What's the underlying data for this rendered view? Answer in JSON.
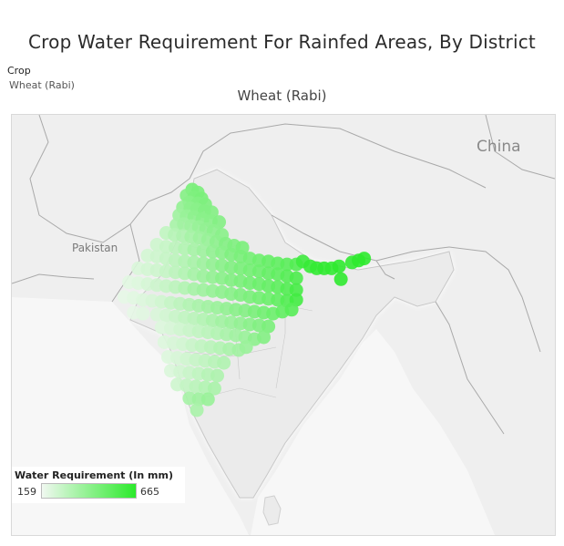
{
  "title": "Crop Water Requirement For Rainfed Areas, By District",
  "filter": {
    "label": "Crop",
    "value": "Wheat (Rabi)"
  },
  "subtitle": "Wheat (Rabi)",
  "map": {
    "country_labels": {
      "china": "China",
      "pakistan": "Pakistan"
    },
    "colors": {
      "low": "#f1f8f1",
      "high": "#2bea2b",
      "land": "#ececec",
      "border": "#a9a9a9"
    }
  },
  "legend": {
    "title": "Water Requirement (In mm)",
    "min": "159",
    "max": "665"
  },
  "districts": [
    {
      "lon": 76.8,
      "lat": 34.2,
      "v": 0.62
    },
    {
      "lon": 77.4,
      "lat": 33.9,
      "v": 0.6
    },
    {
      "lon": 76.2,
      "lat": 33.6,
      "v": 0.55
    },
    {
      "lon": 77.0,
      "lat": 33.4,
      "v": 0.58
    },
    {
      "lon": 77.8,
      "lat": 33.3,
      "v": 0.6
    },
    {
      "lon": 76.5,
      "lat": 32.9,
      "v": 0.52
    },
    {
      "lon": 77.4,
      "lat": 32.8,
      "v": 0.55
    },
    {
      "lon": 78.2,
      "lat": 32.7,
      "v": 0.58
    },
    {
      "lon": 75.8,
      "lat": 32.4,
      "v": 0.48
    },
    {
      "lon": 76.6,
      "lat": 32.3,
      "v": 0.5
    },
    {
      "lon": 77.3,
      "lat": 32.2,
      "v": 0.52
    },
    {
      "lon": 78.1,
      "lat": 32.0,
      "v": 0.55
    },
    {
      "lon": 78.9,
      "lat": 31.9,
      "v": 0.55
    },
    {
      "lon": 75.4,
      "lat": 31.6,
      "v": 0.42
    },
    {
      "lon": 76.2,
      "lat": 31.5,
      "v": 0.45
    },
    {
      "lon": 77.0,
      "lat": 31.4,
      "v": 0.5
    },
    {
      "lon": 77.9,
      "lat": 31.2,
      "v": 0.52
    },
    {
      "lon": 78.8,
      "lat": 31.0,
      "v": 0.52
    },
    {
      "lon": 79.7,
      "lat": 30.9,
      "v": 0.55
    },
    {
      "lon": 75.1,
      "lat": 30.6,
      "v": 0.38
    },
    {
      "lon": 75.9,
      "lat": 30.7,
      "v": 0.4
    },
    {
      "lon": 76.7,
      "lat": 30.5,
      "v": 0.42
    },
    {
      "lon": 77.5,
      "lat": 30.4,
      "v": 0.45
    },
    {
      "lon": 78.3,
      "lat": 30.2,
      "v": 0.48
    },
    {
      "lon": 79.1,
      "lat": 30.0,
      "v": 0.5
    },
    {
      "lon": 80.0,
      "lat": 29.6,
      "v": 0.52
    },
    {
      "lon": 74.0,
      "lat": 29.8,
      "v": 0.25
    },
    {
      "lon": 74.9,
      "lat": 29.6,
      "v": 0.3
    },
    {
      "lon": 75.8,
      "lat": 29.5,
      "v": 0.33
    },
    {
      "lon": 76.7,
      "lat": 29.4,
      "v": 0.38
    },
    {
      "lon": 77.6,
      "lat": 29.3,
      "v": 0.42
    },
    {
      "lon": 78.5,
      "lat": 29.1,
      "v": 0.45
    },
    {
      "lon": 79.4,
      "lat": 28.9,
      "v": 0.5
    },
    {
      "lon": 80.4,
      "lat": 28.7,
      "v": 0.55
    },
    {
      "lon": 81.3,
      "lat": 28.5,
      "v": 0.57
    },
    {
      "lon": 82.2,
      "lat": 28.3,
      "v": 0.6
    },
    {
      "lon": 73.0,
      "lat": 28.6,
      "v": 0.18
    },
    {
      "lon": 74.0,
      "lat": 28.4,
      "v": 0.22
    },
    {
      "lon": 75.0,
      "lat": 28.3,
      "v": 0.27
    },
    {
      "lon": 76.0,
      "lat": 28.2,
      "v": 0.32
    },
    {
      "lon": 77.0,
      "lat": 28.1,
      "v": 0.38
    },
    {
      "lon": 78.0,
      "lat": 28.0,
      "v": 0.42
    },
    {
      "lon": 79.0,
      "lat": 27.9,
      "v": 0.48
    },
    {
      "lon": 80.0,
      "lat": 27.8,
      "v": 0.52
    },
    {
      "lon": 81.0,
      "lat": 27.6,
      "v": 0.57
    },
    {
      "lon": 82.0,
      "lat": 27.4,
      "v": 0.6
    },
    {
      "lon": 83.0,
      "lat": 27.2,
      "v": 0.63
    },
    {
      "lon": 84.0,
      "lat": 27.0,
      "v": 0.66
    },
    {
      "lon": 85.0,
      "lat": 26.9,
      "v": 0.7
    },
    {
      "lon": 86.0,
      "lat": 26.7,
      "v": 0.73
    },
    {
      "lon": 87.0,
      "lat": 26.6,
      "v": 0.76
    },
    {
      "lon": 88.0,
      "lat": 26.6,
      "v": 0.8
    },
    {
      "lon": 88.7,
      "lat": 26.9,
      "v": 0.9
    },
    {
      "lon": 89.5,
      "lat": 26.4,
      "v": 0.95
    },
    {
      "lon": 90.2,
      "lat": 26.2,
      "v": 0.96
    },
    {
      "lon": 91.0,
      "lat": 26.2,
      "v": 0.97
    },
    {
      "lon": 91.8,
      "lat": 26.2,
      "v": 0.96
    },
    {
      "lon": 92.6,
      "lat": 26.4,
      "v": 0.98
    },
    {
      "lon": 94.0,
      "lat": 26.8,
      "v": 0.97
    },
    {
      "lon": 94.7,
      "lat": 27.0,
      "v": 0.98
    },
    {
      "lon": 95.3,
      "lat": 27.2,
      "v": 0.99
    },
    {
      "lon": 92.8,
      "lat": 25.1,
      "v": 0.98
    },
    {
      "lon": 72.0,
      "lat": 27.5,
      "v": 0.15
    },
    {
      "lon": 73.0,
      "lat": 27.4,
      "v": 0.18
    },
    {
      "lon": 74.0,
      "lat": 27.2,
      "v": 0.22
    },
    {
      "lon": 75.0,
      "lat": 27.0,
      "v": 0.27
    },
    {
      "lon": 76.0,
      "lat": 26.9,
      "v": 0.32
    },
    {
      "lon": 77.0,
      "lat": 26.8,
      "v": 0.37
    },
    {
      "lon": 78.0,
      "lat": 26.7,
      "v": 0.42
    },
    {
      "lon": 79.0,
      "lat": 26.6,
      "v": 0.47
    },
    {
      "lon": 80.0,
      "lat": 26.5,
      "v": 0.52
    },
    {
      "lon": 81.0,
      "lat": 26.3,
      "v": 0.56
    },
    {
      "lon": 82.0,
      "lat": 26.2,
      "v": 0.6
    },
    {
      "lon": 83.0,
      "lat": 26.0,
      "v": 0.63
    },
    {
      "lon": 84.0,
      "lat": 25.9,
      "v": 0.66
    },
    {
      "lon": 85.0,
      "lat": 25.7,
      "v": 0.7
    },
    {
      "lon": 86.0,
      "lat": 25.6,
      "v": 0.73
    },
    {
      "lon": 87.0,
      "lat": 25.4,
      "v": 0.78
    },
    {
      "lon": 88.0,
      "lat": 25.2,
      "v": 0.83
    },
    {
      "lon": 71.0,
      "lat": 26.2,
      "v": 0.12
    },
    {
      "lon": 72.0,
      "lat": 26.1,
      "v": 0.15
    },
    {
      "lon": 73.0,
      "lat": 26.0,
      "v": 0.18
    },
    {
      "lon": 74.0,
      "lat": 25.9,
      "v": 0.22
    },
    {
      "lon": 75.0,
      "lat": 25.8,
      "v": 0.27
    },
    {
      "lon": 76.0,
      "lat": 25.7,
      "v": 0.32
    },
    {
      "lon": 77.0,
      "lat": 25.6,
      "v": 0.38
    },
    {
      "lon": 78.0,
      "lat": 25.4,
      "v": 0.43
    },
    {
      "lon": 79.0,
      "lat": 25.3,
      "v": 0.47
    },
    {
      "lon": 80.0,
      "lat": 25.2,
      "v": 0.52
    },
    {
      "lon": 81.0,
      "lat": 25.0,
      "v": 0.56
    },
    {
      "lon": 82.0,
      "lat": 24.9,
      "v": 0.6
    },
    {
      "lon": 83.0,
      "lat": 24.7,
      "v": 0.64
    },
    {
      "lon": 84.0,
      "lat": 24.6,
      "v": 0.67
    },
    {
      "lon": 85.0,
      "lat": 24.4,
      "v": 0.7
    },
    {
      "lon": 86.0,
      "lat": 24.3,
      "v": 0.74
    },
    {
      "lon": 87.0,
      "lat": 24.1,
      "v": 0.8
    },
    {
      "lon": 88.0,
      "lat": 24.0,
      "v": 0.86
    },
    {
      "lon": 70.0,
      "lat": 24.8,
      "v": 0.08
    },
    {
      "lon": 71.0,
      "lat": 24.7,
      "v": 0.1
    },
    {
      "lon": 72.0,
      "lat": 24.6,
      "v": 0.14
    },
    {
      "lon": 73.0,
      "lat": 24.5,
      "v": 0.18
    },
    {
      "lon": 74.0,
      "lat": 24.4,
      "v": 0.22
    },
    {
      "lon": 75.0,
      "lat": 24.3,
      "v": 0.27
    },
    {
      "lon": 76.0,
      "lat": 24.2,
      "v": 0.32
    },
    {
      "lon": 77.0,
      "lat": 24.1,
      "v": 0.38
    },
    {
      "lon": 78.0,
      "lat": 24.0,
      "v": 0.42
    },
    {
      "lon": 79.0,
      "lat": 23.9,
      "v": 0.46
    },
    {
      "lon": 80.0,
      "lat": 23.8,
      "v": 0.5
    },
    {
      "lon": 81.0,
      "lat": 23.6,
      "v": 0.53
    },
    {
      "lon": 82.0,
      "lat": 23.5,
      "v": 0.57
    },
    {
      "lon": 83.0,
      "lat": 23.3,
      "v": 0.6
    },
    {
      "lon": 84.0,
      "lat": 23.2,
      "v": 0.64
    },
    {
      "lon": 85.0,
      "lat": 23.1,
      "v": 0.67
    },
    {
      "lon": 86.0,
      "lat": 23.0,
      "v": 0.72
    },
    {
      "lon": 87.0,
      "lat": 22.9,
      "v": 0.8
    },
    {
      "lon": 88.0,
      "lat": 23.0,
      "v": 0.88
    },
    {
      "lon": 69.5,
      "lat": 23.3,
      "v": 0.06
    },
    {
      "lon": 70.5,
      "lat": 23.2,
      "v": 0.08
    },
    {
      "lon": 71.5,
      "lat": 23.0,
      "v": 0.1
    },
    {
      "lon": 72.5,
      "lat": 22.9,
      "v": 0.13
    },
    {
      "lon": 73.5,
      "lat": 22.8,
      "v": 0.17
    },
    {
      "lon": 74.5,
      "lat": 22.7,
      "v": 0.22
    },
    {
      "lon": 75.5,
      "lat": 22.6,
      "v": 0.27
    },
    {
      "lon": 76.5,
      "lat": 22.5,
      "v": 0.32
    },
    {
      "lon": 77.5,
      "lat": 22.4,
      "v": 0.36
    },
    {
      "lon": 78.5,
      "lat": 22.3,
      "v": 0.4
    },
    {
      "lon": 79.5,
      "lat": 22.2,
      "v": 0.44
    },
    {
      "lon": 80.5,
      "lat": 22.1,
      "v": 0.48
    },
    {
      "lon": 81.5,
      "lat": 22.0,
      "v": 0.52
    },
    {
      "lon": 82.5,
      "lat": 21.9,
      "v": 0.55
    },
    {
      "lon": 83.5,
      "lat": 21.8,
      "v": 0.6
    },
    {
      "lon": 84.5,
      "lat": 21.7,
      "v": 0.64
    },
    {
      "lon": 85.5,
      "lat": 21.6,
      "v": 0.67
    },
    {
      "lon": 86.5,
      "lat": 21.8,
      "v": 0.72
    },
    {
      "lon": 87.5,
      "lat": 22.0,
      "v": 0.78
    },
    {
      "lon": 70.5,
      "lat": 21.7,
      "v": 0.06
    },
    {
      "lon": 71.5,
      "lat": 21.6,
      "v": 0.08
    },
    {
      "lon": 73.0,
      "lat": 21.5,
      "v": 0.12
    },
    {
      "lon": 74.0,
      "lat": 21.4,
      "v": 0.16
    },
    {
      "lon": 75.0,
      "lat": 21.3,
      "v": 0.2
    },
    {
      "lon": 76.0,
      "lat": 21.2,
      "v": 0.24
    },
    {
      "lon": 77.0,
      "lat": 21.1,
      "v": 0.28
    },
    {
      "lon": 78.0,
      "lat": 21.0,
      "v": 0.32
    },
    {
      "lon": 79.0,
      "lat": 20.9,
      "v": 0.36
    },
    {
      "lon": 80.0,
      "lat": 20.8,
      "v": 0.4
    },
    {
      "lon": 81.0,
      "lat": 20.7,
      "v": 0.44
    },
    {
      "lon": 82.0,
      "lat": 20.6,
      "v": 0.48
    },
    {
      "lon": 83.0,
      "lat": 20.5,
      "v": 0.52
    },
    {
      "lon": 84.0,
      "lat": 20.4,
      "v": 0.56
    },
    {
      "lon": 85.0,
      "lat": 20.3,
      "v": 0.6
    },
    {
      "lon": 73.5,
      "lat": 20.2,
      "v": 0.1
    },
    {
      "lon": 74.5,
      "lat": 20.1,
      "v": 0.13
    },
    {
      "lon": 75.5,
      "lat": 20.0,
      "v": 0.17
    },
    {
      "lon": 76.5,
      "lat": 19.9,
      "v": 0.2
    },
    {
      "lon": 77.5,
      "lat": 19.8,
      "v": 0.24
    },
    {
      "lon": 78.5,
      "lat": 19.7,
      "v": 0.28
    },
    {
      "lon": 79.5,
      "lat": 19.6,
      "v": 0.32
    },
    {
      "lon": 80.5,
      "lat": 19.5,
      "v": 0.36
    },
    {
      "lon": 81.5,
      "lat": 19.4,
      "v": 0.4
    },
    {
      "lon": 82.5,
      "lat": 19.2,
      "v": 0.44
    },
    {
      "lon": 83.5,
      "lat": 19.0,
      "v": 0.5
    },
    {
      "lon": 84.5,
      "lat": 19.2,
      "v": 0.55
    },
    {
      "lon": 73.8,
      "lat": 18.7,
      "v": 0.1
    },
    {
      "lon": 74.8,
      "lat": 18.6,
      "v": 0.13
    },
    {
      "lon": 75.8,
      "lat": 18.5,
      "v": 0.16
    },
    {
      "lon": 76.8,
      "lat": 18.4,
      "v": 0.2
    },
    {
      "lon": 77.8,
      "lat": 18.3,
      "v": 0.24
    },
    {
      "lon": 78.8,
      "lat": 18.2,
      "v": 0.28
    },
    {
      "lon": 79.8,
      "lat": 18.1,
      "v": 0.32
    },
    {
      "lon": 80.8,
      "lat": 18.0,
      "v": 0.36
    },
    {
      "lon": 81.8,
      "lat": 17.9,
      "v": 0.4
    },
    {
      "lon": 82.6,
      "lat": 18.2,
      "v": 0.44
    },
    {
      "lon": 74.2,
      "lat": 17.2,
      "v": 0.1
    },
    {
      "lon": 75.2,
      "lat": 17.1,
      "v": 0.13
    },
    {
      "lon": 76.2,
      "lat": 17.0,
      "v": 0.17
    },
    {
      "lon": 77.2,
      "lat": 16.9,
      "v": 0.21
    },
    {
      "lon": 78.2,
      "lat": 16.8,
      "v": 0.25
    },
    {
      "lon": 79.2,
      "lat": 16.7,
      "v": 0.29
    },
    {
      "lon": 80.2,
      "lat": 16.6,
      "v": 0.33
    },
    {
      "lon": 74.5,
      "lat": 15.8,
      "v": 0.12
    },
    {
      "lon": 75.5,
      "lat": 15.7,
      "v": 0.16
    },
    {
      "lon": 76.5,
      "lat": 15.6,
      "v": 0.2
    },
    {
      "lon": 77.5,
      "lat": 15.5,
      "v": 0.25
    },
    {
      "lon": 78.5,
      "lat": 15.4,
      "v": 0.3
    },
    {
      "lon": 79.5,
      "lat": 15.3,
      "v": 0.34
    },
    {
      "lon": 75.2,
      "lat": 14.4,
      "v": 0.18
    },
    {
      "lon": 76.2,
      "lat": 14.3,
      "v": 0.23
    },
    {
      "lon": 77.2,
      "lat": 14.2,
      "v": 0.28
    },
    {
      "lon": 78.2,
      "lat": 14.1,
      "v": 0.32
    },
    {
      "lon": 79.2,
      "lat": 14.0,
      "v": 0.36
    },
    {
      "lon": 76.5,
      "lat": 13.0,
      "v": 0.38
    },
    {
      "lon": 77.5,
      "lat": 12.9,
      "v": 0.42
    },
    {
      "lon": 78.5,
      "lat": 12.9,
      "v": 0.45
    },
    {
      "lon": 77.3,
      "lat": 11.8,
      "v": 0.36
    }
  ]
}
